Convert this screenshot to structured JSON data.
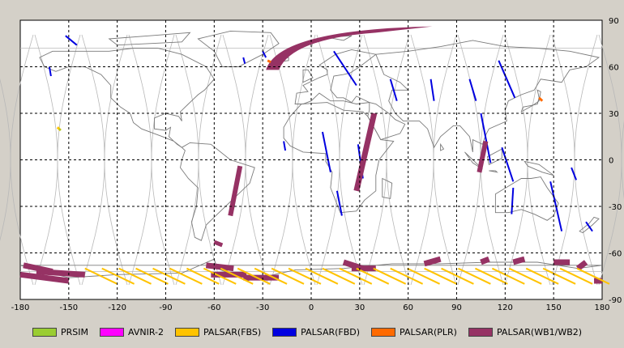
{
  "map": {
    "x_ticks": [
      "-180",
      "-150",
      "-120",
      "-90",
      "-60",
      "-30",
      "0",
      "30",
      "60",
      "90",
      "120",
      "150",
      "180"
    ],
    "y_ticks": [
      "90",
      "60",
      "30",
      "0",
      "-30",
      "-60",
      "-90"
    ],
    "lon_range": [
      -180,
      180
    ],
    "lat_range": [
      -90,
      90
    ],
    "grid": "dashed"
  },
  "legend": [
    {
      "label": "PRSIM",
      "color": "#9acd32"
    },
    {
      "label": "AVNIR-2",
      "color": "#ff00ff"
    },
    {
      "label": "PALSAR(FBS)",
      "color": "#ffc300"
    },
    {
      "label": "PALSAR(FBD)",
      "color": "#0000e0"
    },
    {
      "label": "PALSAR(PLR)",
      "color": "#ff6a00"
    },
    {
      "label": "PALSAR(WB1/WB2)",
      "color": "#963264"
    }
  ]
}
